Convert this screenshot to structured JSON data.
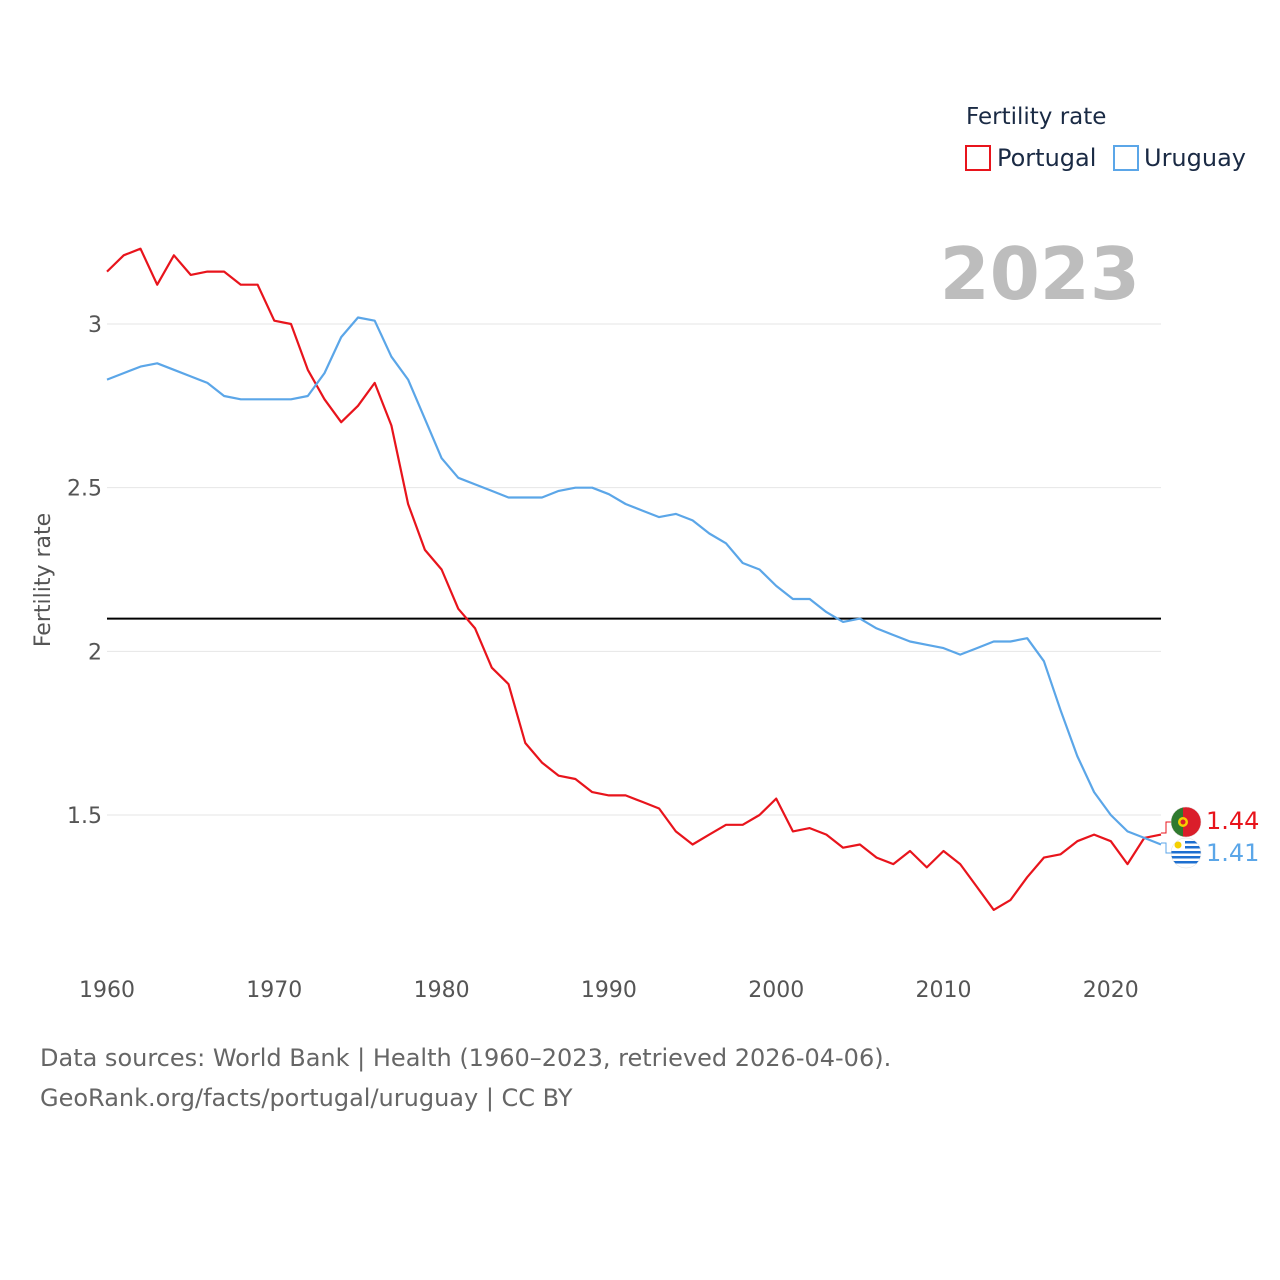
{
  "chart_data": {
    "type": "line",
    "ylabel": "Fertility rate",
    "xlabel": "",
    "xlim": [
      1960,
      2023
    ],
    "ylim": [
      1.05,
      3.35
    ],
    "xticks": [
      1960,
      1970,
      1980,
      1990,
      2000,
      2010,
      2020
    ],
    "yticks": [
      1.5,
      2,
      2.5,
      3
    ],
    "ytick_labels": [
      "1.5",
      "2",
      "2.5",
      "3"
    ],
    "xtick_labels": [
      "1960",
      "1970",
      "1980",
      "1990",
      "2000",
      "2010",
      "2020"
    ],
    "reference_line": 2.1,
    "legend_title": "Fertility rate",
    "current_year": "2023",
    "x": [
      1960,
      1961,
      1962,
      1963,
      1964,
      1965,
      1966,
      1967,
      1968,
      1969,
      1970,
      1971,
      1972,
      1973,
      1974,
      1975,
      1976,
      1977,
      1978,
      1979,
      1980,
      1981,
      1982,
      1983,
      1984,
      1985,
      1986,
      1987,
      1988,
      1989,
      1990,
      1991,
      1992,
      1993,
      1994,
      1995,
      1996,
      1997,
      1998,
      1999,
      2000,
      2001,
      2002,
      2003,
      2004,
      2005,
      2006,
      2007,
      2008,
      2009,
      2010,
      2011,
      2012,
      2013,
      2014,
      2015,
      2016,
      2017,
      2018,
      2019,
      2020,
      2021,
      2022,
      2023
    ],
    "series": [
      {
        "name": "Portugal",
        "color": "#e8141c",
        "end_label": "1.44",
        "values": [
          3.16,
          3.21,
          3.23,
          3.12,
          3.21,
          3.15,
          3.16,
          3.16,
          3.12,
          3.12,
          3.01,
          3.0,
          2.86,
          2.77,
          2.7,
          2.75,
          2.82,
          2.69,
          2.45,
          2.31,
          2.25,
          2.13,
          2.07,
          1.95,
          1.9,
          1.72,
          1.66,
          1.62,
          1.61,
          1.57,
          1.56,
          1.56,
          1.54,
          1.52,
          1.45,
          1.41,
          1.44,
          1.47,
          1.47,
          1.5,
          1.55,
          1.45,
          1.46,
          1.44,
          1.4,
          1.41,
          1.37,
          1.35,
          1.39,
          1.34,
          1.39,
          1.35,
          1.28,
          1.21,
          1.24,
          1.31,
          1.37,
          1.38,
          1.42,
          1.44,
          1.42,
          1.35,
          1.43,
          1.44
        ]
      },
      {
        "name": "Uruguay",
        "color": "#5ba6e8",
        "end_label": "1.41",
        "values": [
          2.83,
          2.85,
          2.87,
          2.88,
          2.86,
          2.84,
          2.82,
          2.78,
          2.77,
          2.77,
          2.77,
          2.77,
          2.78,
          2.85,
          2.96,
          3.02,
          3.01,
          2.9,
          2.83,
          2.71,
          2.59,
          2.53,
          2.51,
          2.49,
          2.47,
          2.47,
          2.47,
          2.49,
          2.5,
          2.5,
          2.48,
          2.45,
          2.43,
          2.41,
          2.42,
          2.4,
          2.36,
          2.33,
          2.27,
          2.25,
          2.2,
          2.16,
          2.16,
          2.12,
          2.09,
          2.1,
          2.07,
          2.05,
          2.03,
          2.02,
          2.01,
          1.99,
          2.01,
          2.03,
          2.03,
          2.04,
          1.97,
          1.82,
          1.68,
          1.57,
          1.5,
          1.45,
          1.43,
          1.41
        ]
      }
    ]
  },
  "source_line1": "Data sources: World Bank | Health (1960–2023, retrieved 2026-04-06).",
  "source_line2": "GeoRank.org/facts/portugal/uruguay | CC BY"
}
